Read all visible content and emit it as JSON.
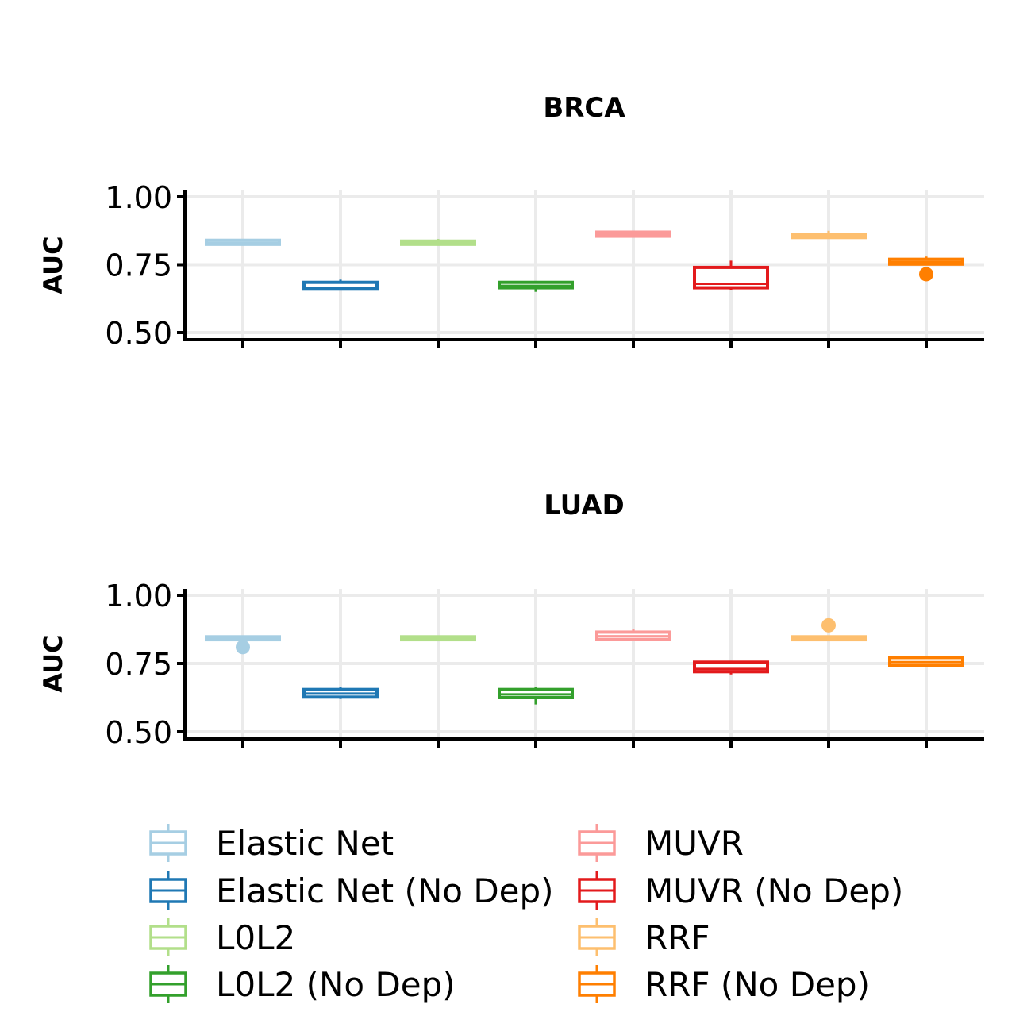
{
  "chart_data": {
    "type": "boxplot",
    "y_axis_label": "AUC",
    "ylim": [
      0.5,
      1.0
    ],
    "y_ticks": [
      "0.50",
      "0.75",
      "1.00"
    ],
    "y_tick_values": [
      0.5,
      0.75,
      1.0
    ],
    "grid": true,
    "legend_position": "bottom",
    "series": [
      {
        "name": "Elastic Net",
        "color": "#a6cee3"
      },
      {
        "name": "Elastic Net (No Dep)",
        "color": "#1f78b4"
      },
      {
        "name": "L0L2",
        "color": "#b2df8a"
      },
      {
        "name": "L0L2 (No Dep)",
        "color": "#33a02c"
      },
      {
        "name": "MUVR",
        "color": "#fb9a99"
      },
      {
        "name": "MUVR (No Dep)",
        "color": "#e31a1c"
      },
      {
        "name": "RRF",
        "color": "#fdbf6f"
      },
      {
        "name": "RRF (No Dep)",
        "color": "#ff7f00"
      }
    ],
    "panels": [
      {
        "title": "BRCA",
        "boxes": [
          {
            "min": 0.82,
            "q1": 0.825,
            "median": 0.83,
            "q3": 0.84,
            "max": 0.845,
            "outliers": []
          },
          {
            "min": 0.655,
            "q1": 0.66,
            "median": 0.665,
            "q3": 0.685,
            "max": 0.695,
            "outliers": []
          },
          {
            "min": 0.82,
            "q1": 0.825,
            "median": 0.83,
            "q3": 0.837,
            "max": 0.845,
            "outliers": []
          },
          {
            "min": 0.65,
            "q1": 0.665,
            "median": 0.672,
            "q3": 0.685,
            "max": 0.69,
            "outliers": []
          },
          {
            "min": 0.85,
            "q1": 0.855,
            "median": 0.862,
            "q3": 0.87,
            "max": 0.875,
            "outliers": []
          },
          {
            "min": 0.655,
            "q1": 0.665,
            "median": 0.68,
            "q3": 0.74,
            "max": 0.765,
            "outliers": []
          },
          {
            "min": 0.845,
            "q1": 0.85,
            "median": 0.855,
            "q3": 0.862,
            "max": 0.875,
            "outliers": []
          },
          {
            "min": 0.75,
            "q1": 0.752,
            "median": 0.76,
            "q3": 0.77,
            "max": 0.78,
            "outliers": [
              0.715
            ]
          }
        ]
      },
      {
        "title": "LUAD",
        "boxes": [
          {
            "min": 0.835,
            "q1": 0.837,
            "median": 0.842,
            "q3": 0.848,
            "max": 0.85,
            "outliers": [
              0.81
            ]
          },
          {
            "min": 0.62,
            "q1": 0.627,
            "median": 0.64,
            "q3": 0.655,
            "max": 0.665,
            "outliers": []
          },
          {
            "min": 0.835,
            "q1": 0.837,
            "median": 0.842,
            "q3": 0.848,
            "max": 0.85,
            "outliers": []
          },
          {
            "min": 0.6,
            "q1": 0.625,
            "median": 0.637,
            "q3": 0.655,
            "max": 0.665,
            "outliers": []
          },
          {
            "min": 0.835,
            "q1": 0.838,
            "median": 0.85,
            "q3": 0.865,
            "max": 0.875,
            "outliers": []
          },
          {
            "min": 0.71,
            "q1": 0.72,
            "median": 0.73,
            "q3": 0.755,
            "max": 0.76,
            "outliers": []
          },
          {
            "min": 0.835,
            "q1": 0.837,
            "median": 0.842,
            "q3": 0.848,
            "max": 0.85,
            "outliers": [
              0.89
            ]
          },
          {
            "min": 0.74,
            "q1": 0.742,
            "median": 0.755,
            "q3": 0.772,
            "max": 0.775,
            "outliers": []
          }
        ]
      }
    ]
  }
}
